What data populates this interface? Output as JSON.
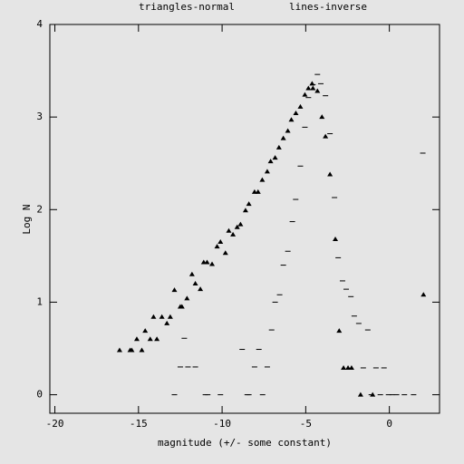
{
  "chart_data": {
    "type": "scatter",
    "title_left": "triangles-normal",
    "title_right": "lines-inverse",
    "xlabel": "magnitude (+/- some constant)",
    "ylabel": "Log N",
    "xlim": [
      -20.3,
      3
    ],
    "ylim": [
      -0.2,
      4
    ],
    "xticks": [
      -20,
      -15,
      -10,
      -5,
      0
    ],
    "yticks": [
      0,
      1,
      2,
      3,
      4
    ],
    "series": [
      {
        "name": "triangles-normal",
        "marker": "triangle",
        "color": "#000000",
        "x": [
          -16.13,
          -15.5,
          -15.4,
          -15.1,
          -14.8,
          -14.6,
          -14.3,
          -14.1,
          -13.9,
          -13.6,
          -13.3,
          -13.1,
          -12.85,
          -12.5,
          -12.4,
          -12.1,
          -11.8,
          -11.6,
          -11.3,
          -11.1,
          -10.9,
          -10.6,
          -10.3,
          -10.1,
          -9.8,
          -9.6,
          -9.35,
          -9.1,
          -8.9,
          -8.6,
          -8.4,
          -8.06,
          -7.85,
          -7.6,
          -7.3,
          -7.1,
          -6.83,
          -6.6,
          -6.34,
          -6.07,
          -5.86,
          -5.59,
          -5.32,
          -5.05,
          -4.84,
          -4.62,
          -4.57,
          -4.3,
          -4.03,
          -3.82,
          -3.55,
          -3.23,
          -3.0,
          -2.74,
          -2.47,
          -2.26,
          -1.72,
          -1.0,
          2.04
        ],
        "values": [
          0.48,
          0.48,
          0.48,
          0.6,
          0.48,
          0.69,
          0.6,
          0.84,
          0.6,
          0.84,
          0.77,
          0.84,
          1.13,
          0.95,
          0.95,
          1.04,
          1.3,
          1.2,
          1.14,
          1.43,
          1.43,
          1.41,
          1.6,
          1.65,
          1.53,
          1.77,
          1.73,
          1.81,
          1.84,
          1.99,
          2.06,
          2.19,
          2.19,
          2.32,
          2.41,
          2.52,
          2.56,
          2.67,
          2.77,
          2.85,
          2.97,
          3.04,
          3.11,
          3.24,
          3.31,
          3.36,
          3.31,
          3.28,
          3.0,
          2.79,
          2.38,
          1.68,
          0.69,
          0.29,
          0.29,
          0.29,
          0,
          0,
          1.08
        ]
      },
      {
        "name": "lines-inverse",
        "marker": "dash",
        "color": "#000000",
        "x": [
          -12.85,
          -12.5,
          -12.26,
          -12.04,
          -11.6,
          -11.0,
          -10.86,
          -10.1,
          -8.8,
          -8.5,
          -8.4,
          -8.06,
          -7.8,
          -7.58,
          -7.3,
          -7.04,
          -6.83,
          -6.56,
          -6.34,
          -6.07,
          -5.8,
          -5.6,
          -5.32,
          -5.05,
          -4.84,
          -4.57,
          -4.3,
          -4.1,
          -3.82,
          -3.55,
          -3.28,
          -3.06,
          -2.8,
          -2.58,
          -2.3,
          -2.1,
          -1.83,
          -1.56,
          -1.29,
          -1.08,
          -0.8,
          -0.54,
          -0.32,
          -0.05,
          0.16,
          0.43,
          0.9,
          1.45,
          2.0
        ],
        "values": [
          0,
          0.3,
          0.61,
          0.3,
          0.3,
          0,
          0,
          0,
          0.49,
          0,
          0,
          0.3,
          0.49,
          0,
          0.3,
          0.7,
          1.0,
          1.08,
          1.4,
          1.55,
          1.87,
          2.11,
          2.47,
          2.89,
          3.21,
          3.35,
          3.46,
          3.36,
          3.23,
          2.82,
          2.13,
          1.48,
          1.23,
          1.14,
          1.06,
          0.85,
          0.77,
          0.29,
          0.7,
          0,
          0.29,
          0,
          0.29,
          0,
          0,
          0,
          0,
          0,
          2.61
        ]
      }
    ]
  }
}
